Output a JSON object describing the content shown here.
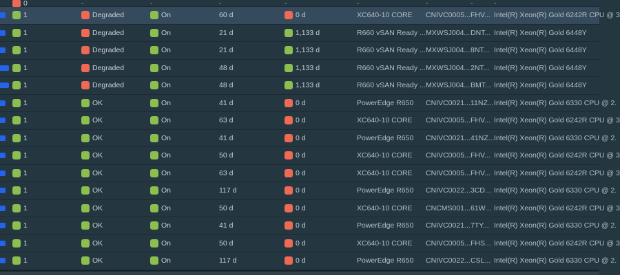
{
  "colors": {
    "green": "#8CBF4F",
    "red": "#EF6A55",
    "blue_link": "#2563EB",
    "row_bg": "#243640",
    "row_selected_bg": "#354B5D",
    "separator": "#1C2B33",
    "text_primary": "#C8D1D4",
    "text_secondary": "#B4C0C4"
  },
  "table": {
    "partial_row": {
      "fragment": "tiny",
      "count": "0",
      "count_color": "red",
      "placeholder": "-",
      "placeholder_columns": [
        "health",
        "power",
        "uptime",
        "warranty",
        "model",
        "tag",
        "code",
        "cpu"
      ]
    },
    "rows": [
      {
        "fragment": "normal",
        "count": "1",
        "count_color": "green",
        "health": "Degraded",
        "health_color": "red",
        "power": "On",
        "power_color": "green",
        "uptime": "60 d",
        "warranty": "0 d",
        "warranty_color": "red",
        "model": "XC640-10 CORE",
        "tag": "CNIVC0005...",
        "code": "FHV...",
        "cpu": "Intel(R) Xeon(R) Gold 6242R CPU @ 3",
        "selected": true
      },
      {
        "fragment": "normal",
        "count": "1",
        "count_color": "green",
        "health": "Degraded",
        "health_color": "red",
        "power": "On",
        "power_color": "green",
        "uptime": "21 d",
        "warranty": "1,133 d",
        "warranty_color": "green",
        "model": "R660 vSAN Ready ...",
        "tag": "MXWSJ004...",
        "code": "DNT...",
        "cpu": "Intel(R) Xeon(R) Gold 6448Y",
        "selected": false
      },
      {
        "fragment": "normal",
        "count": "1",
        "count_color": "green",
        "health": "Degraded",
        "health_color": "red",
        "power": "On",
        "power_color": "green",
        "uptime": "21 d",
        "warranty": "1,133 d",
        "warranty_color": "green",
        "model": "R660 vSAN Ready ...",
        "tag": "MXWSJ004...",
        "code": "8NT...",
        "cpu": "Intel(R) Xeon(R) Gold 6448Y",
        "selected": false
      },
      {
        "fragment": "wide",
        "count": "1",
        "count_color": "green",
        "health": "Degraded",
        "health_color": "red",
        "power": "On",
        "power_color": "green",
        "uptime": "48 d",
        "warranty": "1,133 d",
        "warranty_color": "green",
        "model": "R660 vSAN Ready ...",
        "tag": "MXWSJ004...",
        "code": "2NT...",
        "cpu": "Intel(R) Xeon(R) Gold 6448Y",
        "selected": false
      },
      {
        "fragment": "wide",
        "count": "1",
        "count_color": "green",
        "health": "Degraded",
        "health_color": "red",
        "power": "On",
        "power_color": "green",
        "uptime": "48 d",
        "warranty": "1,133 d",
        "warranty_color": "green",
        "model": "R660 vSAN Ready ...",
        "tag": "MXWSJ004...",
        "code": "BMT...",
        "cpu": "Intel(R) Xeon(R) Gold 6448Y",
        "selected": false
      },
      {
        "fragment": "normal",
        "count": "1",
        "count_color": "green",
        "health": "OK",
        "health_color": "green",
        "power": "On",
        "power_color": "green",
        "uptime": "41 d",
        "warranty": "0 d",
        "warranty_color": "red",
        "model": "PowerEdge R650",
        "tag": "CNIVC0021...",
        "code": "11NZ...",
        "cpu": "Intel(R) Xeon(R) Gold 6330 CPU @ 2.",
        "selected": false
      },
      {
        "fragment": "normal",
        "count": "1",
        "count_color": "green",
        "health": "OK",
        "health_color": "green",
        "power": "On",
        "power_color": "green",
        "uptime": "63 d",
        "warranty": "0 d",
        "warranty_color": "red",
        "model": "XC640-10 CORE",
        "tag": "CNIVC0005...",
        "code": "FHV...",
        "cpu": "Intel(R) Xeon(R) Gold 6242R CPU @ 3",
        "selected": false
      },
      {
        "fragment": "normal",
        "count": "1",
        "count_color": "green",
        "health": "OK",
        "health_color": "green",
        "power": "On",
        "power_color": "green",
        "uptime": "41 d",
        "warranty": "0 d",
        "warranty_color": "red",
        "model": "PowerEdge R650",
        "tag": "CNIVC0021...",
        "code": "41NZ...",
        "cpu": "Intel(R) Xeon(R) Gold 6330 CPU @ 2.",
        "selected": false
      },
      {
        "fragment": "normal",
        "count": "1",
        "count_color": "green",
        "health": "OK",
        "health_color": "green",
        "power": "On",
        "power_color": "green",
        "uptime": "50 d",
        "warranty": "0 d",
        "warranty_color": "red",
        "model": "XC640-10 CORE",
        "tag": "CNIVC0005...",
        "code": "FHV...",
        "cpu": "Intel(R) Xeon(R) Gold 6242R CPU @ 3",
        "selected": false
      },
      {
        "fragment": "normal",
        "count": "1",
        "count_color": "green",
        "health": "OK",
        "health_color": "green",
        "power": "On",
        "power_color": "green",
        "uptime": "63 d",
        "warranty": "0 d",
        "warranty_color": "red",
        "model": "XC640-10 CORE",
        "tag": "CNIVC0005...",
        "code": "FHV...",
        "cpu": "Intel(R) Xeon(R) Gold 6242R CPU @ 3",
        "selected": false
      },
      {
        "fragment": "normal",
        "count": "1",
        "count_color": "green",
        "health": "OK",
        "health_color": "green",
        "power": "On",
        "power_color": "green",
        "uptime": "117 d",
        "warranty": "0 d",
        "warranty_color": "red",
        "model": "PowerEdge R650",
        "tag": "CNIVC0022...",
        "code": "3CD...",
        "cpu": "Intel(R) Xeon(R) Gold 6330 CPU @ 2.",
        "selected": false
      },
      {
        "fragment": "normal",
        "count": "1",
        "count_color": "green",
        "health": "OK",
        "health_color": "green",
        "power": "On",
        "power_color": "green",
        "uptime": "50 d",
        "warranty": "0 d",
        "warranty_color": "red",
        "model": "XC640-10 CORE",
        "tag": "CNCMS001...",
        "code": "61W...",
        "cpu": "Intel(R) Xeon(R) Gold 6242R CPU @ 3",
        "selected": false
      },
      {
        "fragment": "normal",
        "count": "1",
        "count_color": "green",
        "health": "OK",
        "health_color": "green",
        "power": "On",
        "power_color": "green",
        "uptime": "41 d",
        "warranty": "0 d",
        "warranty_color": "red",
        "model": "PowerEdge R650",
        "tag": "CNIVC0021...",
        "code": "7TY...",
        "cpu": "Intel(R) Xeon(R) Gold 6330 CPU @ 2.",
        "selected": false
      },
      {
        "fragment": "normal",
        "count": "1",
        "count_color": "green",
        "health": "OK",
        "health_color": "green",
        "power": "On",
        "power_color": "green",
        "uptime": "50 d",
        "warranty": "0 d",
        "warranty_color": "red",
        "model": "XC640-10 CORE",
        "tag": "CNIVC0005...",
        "code": "FHS...",
        "cpu": "Intel(R) Xeon(R) Gold 6242R CPU @ 3",
        "selected": false
      },
      {
        "fragment": "normal",
        "count": "1",
        "count_color": "green",
        "health": "OK",
        "health_color": "green",
        "power": "On",
        "power_color": "green",
        "uptime": "117 d",
        "warranty": "0 d",
        "warranty_color": "red",
        "model": "PowerEdge R650",
        "tag": "CNIVC0022...",
        "code": "CSL...",
        "cpu": "Intel(R) Xeon(R) Gold 6330 CPU @ 2.",
        "selected": false
      }
    ]
  }
}
